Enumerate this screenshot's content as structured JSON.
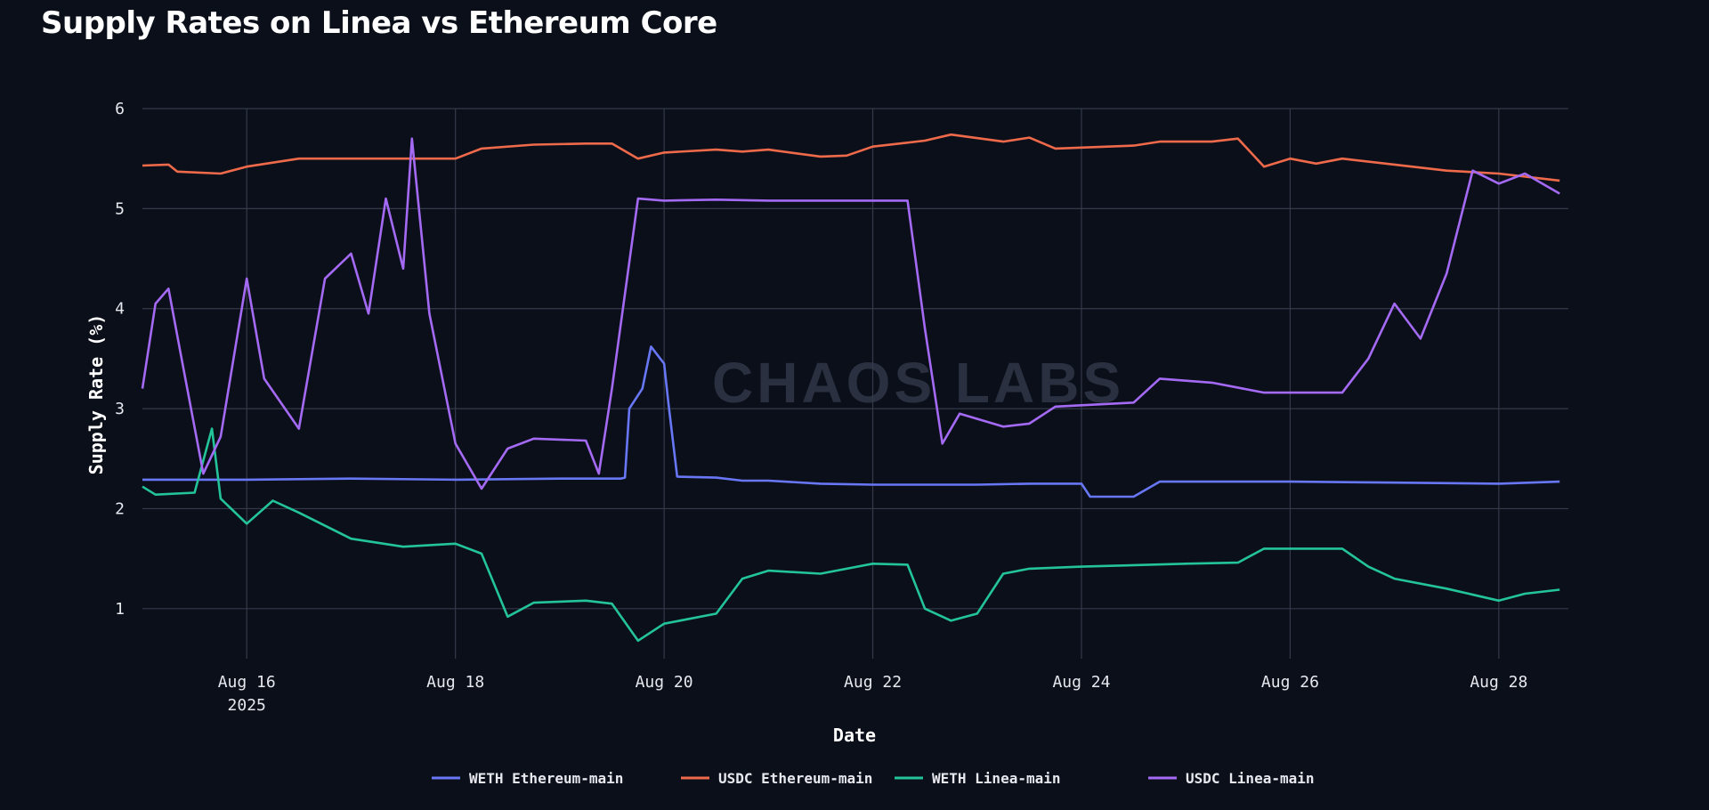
{
  "chart_data": {
    "type": "line",
    "title": "Supply Rates on Linea vs Ethereum Core",
    "xlabel": "Date",
    "ylabel": "Supply Rate (%)",
    "watermark": "CHAOS LABS",
    "xlim": [
      "2025-08-15 00:00",
      "2025-08-28 16:00"
    ],
    "ylim": [
      0.5,
      6
    ],
    "grid": true,
    "legend_position": "bottom-center",
    "x_ticks": [
      {
        "x": "2025-08-16",
        "label": "Aug 16",
        "sublabel": "2025"
      },
      {
        "x": "2025-08-18",
        "label": "Aug 18",
        "sublabel": ""
      },
      {
        "x": "2025-08-20",
        "label": "Aug 20",
        "sublabel": ""
      },
      {
        "x": "2025-08-22",
        "label": "Aug 22",
        "sublabel": ""
      },
      {
        "x": "2025-08-24",
        "label": "Aug 24",
        "sublabel": ""
      },
      {
        "x": "2025-08-26",
        "label": "Aug 26",
        "sublabel": ""
      },
      {
        "x": "2025-08-28",
        "label": "Aug 28",
        "sublabel": ""
      }
    ],
    "y_ticks": [
      1,
      2,
      3,
      4,
      5,
      6
    ],
    "series": [
      {
        "name": "WETH Ethereum-main",
        "color": "#6877f5",
        "points": [
          [
            "2025-08-15 00:00",
            2.29
          ],
          [
            "2025-08-15 12:00",
            2.29
          ],
          [
            "2025-08-16 00:00",
            2.29
          ],
          [
            "2025-08-17 00:00",
            2.3
          ],
          [
            "2025-08-18 00:00",
            2.29
          ],
          [
            "2025-08-19 00:00",
            2.3
          ],
          [
            "2025-08-19 14:00",
            2.3
          ],
          [
            "2025-08-19 15:00",
            2.31
          ],
          [
            "2025-08-19 16:00",
            3.0
          ],
          [
            "2025-08-19 19:00",
            3.2
          ],
          [
            "2025-08-19 21:00",
            3.62
          ],
          [
            "2025-08-20 00:00",
            3.45
          ],
          [
            "2025-08-20 01:00",
            3.05
          ],
          [
            "2025-08-20 03:00",
            2.32
          ],
          [
            "2025-08-20 12:00",
            2.31
          ],
          [
            "2025-08-20 18:00",
            2.28
          ],
          [
            "2025-08-21 00:00",
            2.28
          ],
          [
            "2025-08-21 12:00",
            2.25
          ],
          [
            "2025-08-22 00:00",
            2.24
          ],
          [
            "2025-08-23 00:00",
            2.24
          ],
          [
            "2025-08-23 12:00",
            2.25
          ],
          [
            "2025-08-24 00:00",
            2.25
          ],
          [
            "2025-08-24 02:00",
            2.12
          ],
          [
            "2025-08-24 12:00",
            2.12
          ],
          [
            "2025-08-24 18:00",
            2.27
          ],
          [
            "2025-08-25 12:00",
            2.27
          ],
          [
            "2025-08-26 00:00",
            2.27
          ],
          [
            "2025-08-27 00:00",
            2.26
          ],
          [
            "2025-08-28 00:00",
            2.25
          ],
          [
            "2025-08-28 14:00",
            2.27
          ]
        ]
      },
      {
        "name": "USDC Ethereum-main",
        "color": "#ef6a4a",
        "points": [
          [
            "2025-08-15 00:00",
            5.43
          ],
          [
            "2025-08-15 06:00",
            5.44
          ],
          [
            "2025-08-15 08:00",
            5.37
          ],
          [
            "2025-08-15 18:00",
            5.35
          ],
          [
            "2025-08-16 00:00",
            5.42
          ],
          [
            "2025-08-16 12:00",
            5.5
          ],
          [
            "2025-08-17 00:00",
            5.5
          ],
          [
            "2025-08-17 12:00",
            5.5
          ],
          [
            "2025-08-18 00:00",
            5.5
          ],
          [
            "2025-08-18 06:00",
            5.6
          ],
          [
            "2025-08-18 18:00",
            5.64
          ],
          [
            "2025-08-19 06:00",
            5.65
          ],
          [
            "2025-08-19 12:00",
            5.65
          ],
          [
            "2025-08-19 18:00",
            5.5
          ],
          [
            "2025-08-20 00:00",
            5.56
          ],
          [
            "2025-08-20 12:00",
            5.59
          ],
          [
            "2025-08-20 18:00",
            5.57
          ],
          [
            "2025-08-21 00:00",
            5.59
          ],
          [
            "2025-08-21 12:00",
            5.52
          ],
          [
            "2025-08-21 18:00",
            5.53
          ],
          [
            "2025-08-22 00:00",
            5.62
          ],
          [
            "2025-08-22 12:00",
            5.68
          ],
          [
            "2025-08-22 18:00",
            5.74
          ],
          [
            "2025-08-23 06:00",
            5.67
          ],
          [
            "2025-08-23 12:00",
            5.71
          ],
          [
            "2025-08-23 18:00",
            5.6
          ],
          [
            "2025-08-24 12:00",
            5.63
          ],
          [
            "2025-08-24 18:00",
            5.67
          ],
          [
            "2025-08-25 06:00",
            5.67
          ],
          [
            "2025-08-25 12:00",
            5.7
          ],
          [
            "2025-08-25 18:00",
            5.42
          ],
          [
            "2025-08-26 00:00",
            5.5
          ],
          [
            "2025-08-26 06:00",
            5.45
          ],
          [
            "2025-08-26 12:00",
            5.5
          ],
          [
            "2025-08-27 00:00",
            5.44
          ],
          [
            "2025-08-27 12:00",
            5.38
          ],
          [
            "2025-08-28 00:00",
            5.35
          ],
          [
            "2025-08-28 14:00",
            5.28
          ]
        ]
      },
      {
        "name": "WETH Linea-main",
        "color": "#23c49a",
        "points": [
          [
            "2025-08-15 00:00",
            2.22
          ],
          [
            "2025-08-15 03:00",
            2.14
          ],
          [
            "2025-08-15 12:00",
            2.16
          ],
          [
            "2025-08-15 16:00",
            2.8
          ],
          [
            "2025-08-15 18:00",
            2.1
          ],
          [
            "2025-08-16 00:00",
            1.85
          ],
          [
            "2025-08-16 06:00",
            2.08
          ],
          [
            "2025-08-16 12:00",
            1.96
          ],
          [
            "2025-08-17 00:00",
            1.7
          ],
          [
            "2025-08-17 12:00",
            1.62
          ],
          [
            "2025-08-18 00:00",
            1.65
          ],
          [
            "2025-08-18 06:00",
            1.55
          ],
          [
            "2025-08-18 12:00",
            0.92
          ],
          [
            "2025-08-18 18:00",
            1.06
          ],
          [
            "2025-08-19 06:00",
            1.08
          ],
          [
            "2025-08-19 12:00",
            1.05
          ],
          [
            "2025-08-19 18:00",
            0.68
          ],
          [
            "2025-08-20 00:00",
            0.85
          ],
          [
            "2025-08-20 12:00",
            0.95
          ],
          [
            "2025-08-20 18:00",
            1.3
          ],
          [
            "2025-08-21 00:00",
            1.38
          ],
          [
            "2025-08-21 12:00",
            1.35
          ],
          [
            "2025-08-22 00:00",
            1.45
          ],
          [
            "2025-08-22 08:00",
            1.44
          ],
          [
            "2025-08-22 12:00",
            1.0
          ],
          [
            "2025-08-22 18:00",
            0.88
          ],
          [
            "2025-08-23 00:00",
            0.95
          ],
          [
            "2025-08-23 06:00",
            1.35
          ],
          [
            "2025-08-23 12:00",
            1.4
          ],
          [
            "2025-08-24 00:00",
            1.42
          ],
          [
            "2025-08-25 00:00",
            1.45
          ],
          [
            "2025-08-25 12:00",
            1.46
          ],
          [
            "2025-08-25 18:00",
            1.6
          ],
          [
            "2025-08-26 12:00",
            1.6
          ],
          [
            "2025-08-26 18:00",
            1.42
          ],
          [
            "2025-08-27 00:00",
            1.3
          ],
          [
            "2025-08-27 12:00",
            1.2
          ],
          [
            "2025-08-28 00:00",
            1.08
          ],
          [
            "2025-08-28 06:00",
            1.15
          ],
          [
            "2025-08-28 14:00",
            1.19
          ]
        ]
      },
      {
        "name": "USDC Linea-main",
        "color": "#a46af4",
        "points": [
          [
            "2025-08-15 00:00",
            3.2
          ],
          [
            "2025-08-15 03:00",
            4.05
          ],
          [
            "2025-08-15 06:00",
            4.2
          ],
          [
            "2025-08-15 09:00",
            3.5
          ],
          [
            "2025-08-15 14:00",
            2.35
          ],
          [
            "2025-08-15 18:00",
            2.72
          ],
          [
            "2025-08-16 00:00",
            4.3
          ],
          [
            "2025-08-16 04:00",
            3.3
          ],
          [
            "2025-08-16 08:00",
            3.05
          ],
          [
            "2025-08-16 12:00",
            2.8
          ],
          [
            "2025-08-16 18:00",
            4.3
          ],
          [
            "2025-08-17 00:00",
            4.55
          ],
          [
            "2025-08-17 04:00",
            3.95
          ],
          [
            "2025-08-17 08:00",
            5.1
          ],
          [
            "2025-08-17 12:00",
            4.4
          ],
          [
            "2025-08-17 14:00",
            5.7
          ],
          [
            "2025-08-17 18:00",
            3.95
          ],
          [
            "2025-08-18 00:00",
            2.65
          ],
          [
            "2025-08-18 06:00",
            2.2
          ],
          [
            "2025-08-18 12:00",
            2.6
          ],
          [
            "2025-08-18 18:00",
            2.7
          ],
          [
            "2025-08-19 06:00",
            2.68
          ],
          [
            "2025-08-19 09:00",
            2.35
          ],
          [
            "2025-08-19 12:00",
            3.2
          ],
          [
            "2025-08-19 18:00",
            5.1
          ],
          [
            "2025-08-20 00:00",
            5.08
          ],
          [
            "2025-08-20 12:00",
            5.09
          ],
          [
            "2025-08-21 00:00",
            5.08
          ],
          [
            "2025-08-22 00:00",
            5.08
          ],
          [
            "2025-08-22 08:00",
            5.08
          ],
          [
            "2025-08-22 12:00",
            3.8
          ],
          [
            "2025-08-22 16:00",
            2.65
          ],
          [
            "2025-08-22 20:00",
            2.95
          ],
          [
            "2025-08-23 06:00",
            2.82
          ],
          [
            "2025-08-23 12:00",
            2.85
          ],
          [
            "2025-08-23 18:00",
            3.02
          ],
          [
            "2025-08-24 12:00",
            3.06
          ],
          [
            "2025-08-24 18:00",
            3.3
          ],
          [
            "2025-08-25 06:00",
            3.26
          ],
          [
            "2025-08-25 18:00",
            3.16
          ],
          [
            "2025-08-26 12:00",
            3.16
          ],
          [
            "2025-08-26 18:00",
            3.5
          ],
          [
            "2025-08-27 00:00",
            4.05
          ],
          [
            "2025-08-27 06:00",
            3.7
          ],
          [
            "2025-08-27 12:00",
            4.35
          ],
          [
            "2025-08-27 18:00",
            5.38
          ],
          [
            "2025-08-28 00:00",
            5.25
          ],
          [
            "2025-08-28 06:00",
            5.35
          ],
          [
            "2025-08-28 14:00",
            5.15
          ]
        ]
      }
    ]
  }
}
